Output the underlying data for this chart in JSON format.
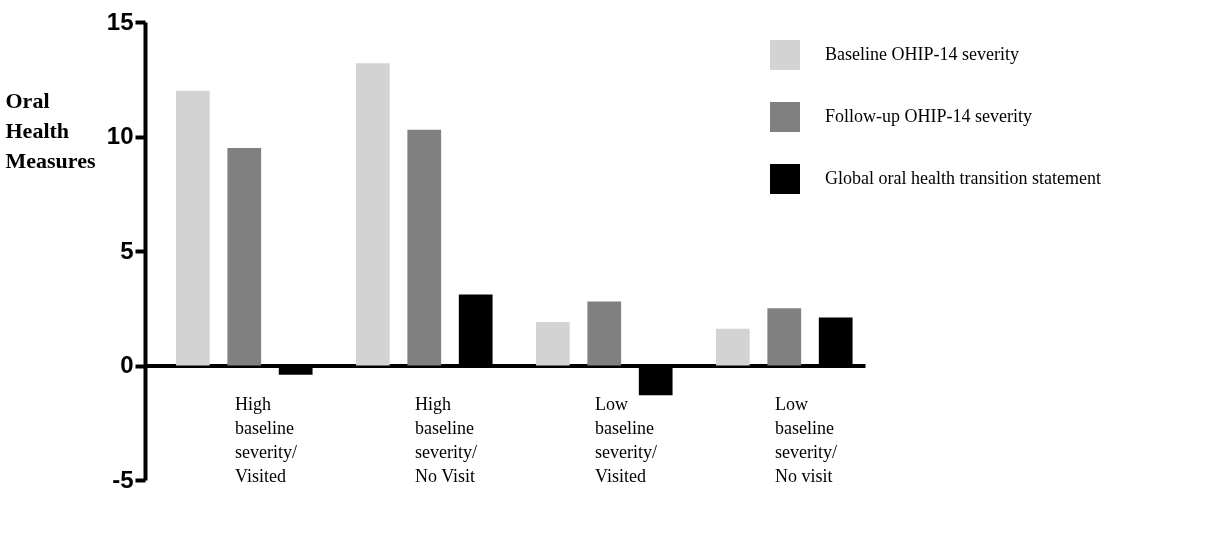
{
  "chart_data": {
    "type": "bar",
    "ylabel": "Oral Health Measures",
    "categories": [
      "High\nbaseline\nseverity/\nVisited",
      "High\nbaseline\nseverity/\nNo Visit",
      "Low\nbaseline\nseverity/\nVisited",
      "Low\nbaseline\nseverity/\nNo visit"
    ],
    "series": [
      {
        "name": "Baseline OHIP-14 severity",
        "color": "#d3d3d3",
        "values": [
          12.0,
          13.2,
          1.9,
          1.6
        ]
      },
      {
        "name": "Follow-up OHIP-14 severity",
        "color": "#808080",
        "values": [
          9.5,
          10.3,
          2.8,
          2.5
        ]
      },
      {
        "name": "Global oral health transition statement",
        "color": "#000000",
        "values": [
          -0.4,
          3.1,
          -1.3,
          2.1
        ]
      }
    ],
    "ylim": [
      -5,
      15
    ],
    "yticks": [
      -5,
      0,
      5,
      10,
      15
    ],
    "grid": false,
    "legend": "top right"
  }
}
